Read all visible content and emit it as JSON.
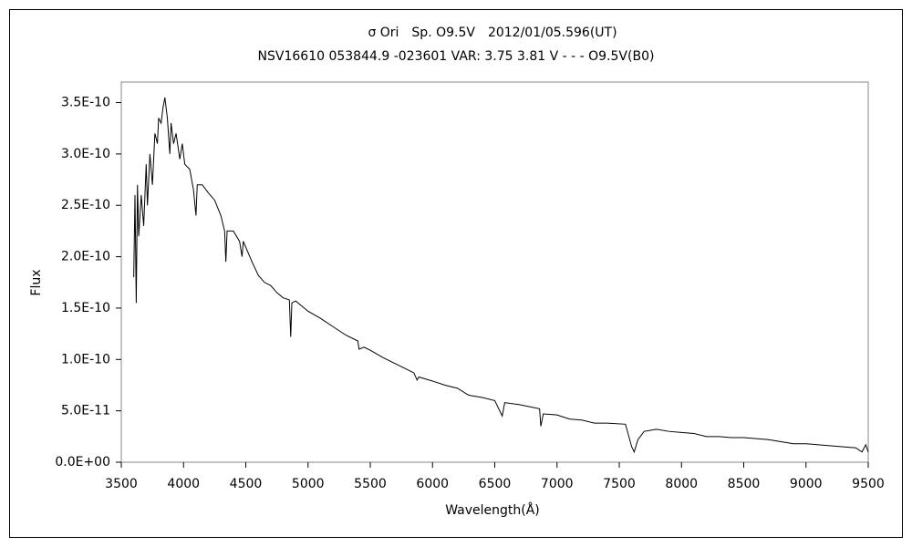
{
  "chart_data": {
    "type": "line",
    "title": "σ Ori　Sp. O9.5V　2012/01/05.596(UT)",
    "subtitle": "NSV16610 053844.9 -023601 VAR: 3.75 3.81 V - - - O9.5V(B0)",
    "xlabel": "Wavelength(Å)",
    "ylabel": "Flux",
    "color": "#000000",
    "xlim": [
      3500,
      9500
    ],
    "xticks": [
      3500,
      4000,
      4500,
      5000,
      5500,
      6000,
      6500,
      7000,
      7500,
      8000,
      8500,
      9000,
      9500
    ],
    "ylim": [
      0,
      3.7e-10
    ],
    "yticks": [
      {
        "value": 0,
        "label": "0.0E+00"
      },
      {
        "value": 5e-11,
        "label": "5.0E-11"
      },
      {
        "value": 1e-10,
        "label": "1.0E-10"
      },
      {
        "value": 1.5e-10,
        "label": "1.5E-10"
      },
      {
        "value": 2e-10,
        "label": "2.0E-10"
      },
      {
        "value": 2.5e-10,
        "label": "2.5E-10"
      },
      {
        "value": 3e-10,
        "label": "3.0E-10"
      },
      {
        "value": 3.5e-10,
        "label": "3.5E-10"
      }
    ],
    "grid": false,
    "x": [
      3600,
      3610,
      3620,
      3630,
      3640,
      3660,
      3680,
      3700,
      3710,
      3730,
      3750,
      3770,
      3790,
      3800,
      3820,
      3835,
      3850,
      3870,
      3890,
      3900,
      3920,
      3940,
      3970,
      3990,
      4010,
      4050,
      4080,
      4100,
      4110,
      4150,
      4200,
      4250,
      4300,
      4330,
      4340,
      4350,
      4400,
      4450,
      4470,
      4480,
      4550,
      4600,
      4650,
      4700,
      4750,
      4800,
      4850,
      4861,
      4870,
      4900,
      5000,
      5100,
      5200,
      5300,
      5400,
      5410,
      5450,
      5500,
      5600,
      5700,
      5800,
      5850,
      5876,
      5890,
      6000,
      6100,
      6200,
      6280,
      6300,
      6400,
      6500,
      6560,
      6580,
      6700,
      6860,
      6870,
      6890,
      7000,
      7100,
      7200,
      7300,
      7400,
      7550,
      7600,
      7620,
      7650,
      7700,
      7800,
      7900,
      8000,
      8100,
      8200,
      8300,
      8400,
      8500,
      8600,
      8700,
      8800,
      8900,
      9000,
      9100,
      9200,
      9300,
      9400,
      9450,
      9480,
      9500
    ],
    "values": [
      1.8e-10,
      2.6e-10,
      1.55e-10,
      2.7e-10,
      2.2e-10,
      2.6e-10,
      2.3e-10,
      2.9e-10,
      2.5e-10,
      3e-10,
      2.7e-10,
      3.2e-10,
      3.1e-10,
      3.35e-10,
      3.3e-10,
      3.45e-10,
      3.55e-10,
      3.35e-10,
      3e-10,
      3.3e-10,
      3.1e-10,
      3.2e-10,
      2.95e-10,
      3.1e-10,
      2.9e-10,
      2.85e-10,
      2.65e-10,
      2.4e-10,
      2.7e-10,
      2.7e-10,
      2.62e-10,
      2.55e-10,
      2.4e-10,
      2.25e-10,
      1.95e-10,
      2.25e-10,
      2.25e-10,
      2.15e-10,
      2e-10,
      2.15e-10,
      1.95e-10,
      1.82e-10,
      1.75e-10,
      1.72e-10,
      1.65e-10,
      1.6e-10,
      1.58e-10,
      1.22e-10,
      1.55e-10,
      1.57e-10,
      1.47e-10,
      1.4e-10,
      1.32e-10,
      1.24e-10,
      1.18e-10,
      1.1e-10,
      1.12e-10,
      1.09e-10,
      1.02e-10,
      9.6e-11,
      9e-11,
      8.7e-11,
      8e-11,
      8.3e-11,
      7.9e-11,
      7.5e-11,
      7.2e-11,
      6.6e-11,
      6.5e-11,
      6.3e-11,
      6e-11,
      4.5e-11,
      5.8e-11,
      5.6e-11,
      5.2e-11,
      3.5e-11,
      4.7e-11,
      4.6e-11,
      4.2e-11,
      4.1e-11,
      3.8e-11,
      3.8e-11,
      3.7e-11,
      1.5e-11,
      1e-11,
      2.2e-11,
      3e-11,
      3.2e-11,
      3e-11,
      2.9e-11,
      2.8e-11,
      2.5e-11,
      2.5e-11,
      2.4e-11,
      2.4e-11,
      2.3e-11,
      2.2e-11,
      2e-11,
      1.8e-11,
      1.8e-11,
      1.7e-11,
      1.6e-11,
      1.5e-11,
      1.4e-11,
      1e-11,
      1.7e-11,
      1e-11
    ]
  }
}
